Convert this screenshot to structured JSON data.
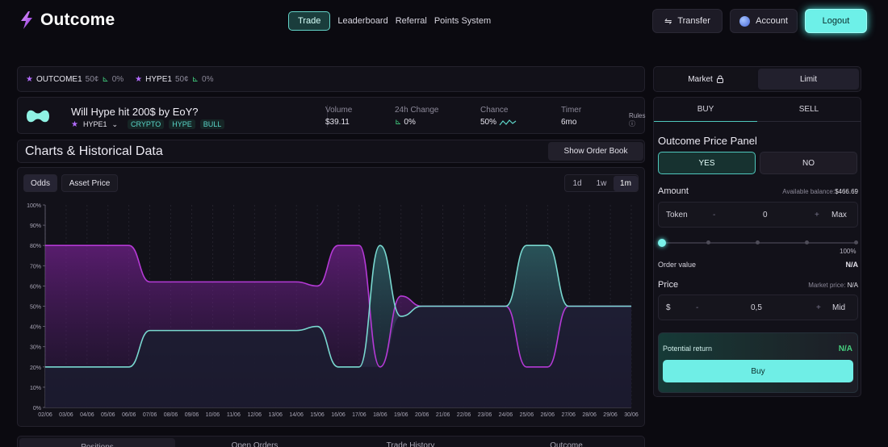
{
  "app": {
    "name": "Outcome",
    "nav": [
      "Trade",
      "Leaderboard",
      "Referral",
      "Points System"
    ],
    "buttons": {
      "transfer": "Transfer",
      "account": "Account",
      "logout": "Logout"
    }
  },
  "ticker": [
    {
      "symbol": "OUTCOME1",
      "price": "50¢",
      "change": "0%"
    },
    {
      "symbol": "HYPE1",
      "price": "50¢",
      "change": "0%"
    }
  ],
  "market": {
    "title": "Will Hype hit 200$ by EoY?",
    "symbol": "HYPE1",
    "tags": [
      "CRYPTO",
      "HYPE",
      "BULL"
    ],
    "volume_label": "Volume",
    "volume": "$39.11",
    "change_label": "24h Change",
    "change": "0%",
    "chance_label": "Chance",
    "chance": "50%",
    "timer_label": "Timer",
    "timer": "6mo",
    "rules": "Rules"
  },
  "charts": {
    "title": "Charts & Historical Data",
    "order_book": "Show Order Book",
    "modes": [
      "Odds",
      "Asset Price"
    ],
    "ranges": [
      "1d",
      "1w",
      "1m"
    ]
  },
  "chart_data": {
    "type": "area",
    "x": [
      "02/06",
      "03/06",
      "04/06",
      "05/06",
      "06/06",
      "07/06",
      "08/06",
      "09/06",
      "10/06",
      "11/06",
      "12/06",
      "13/06",
      "14/06",
      "15/06",
      "16/06",
      "17/06",
      "18/06",
      "19/06",
      "20/06",
      "21/06",
      "22/06",
      "23/06",
      "24/06",
      "25/06",
      "26/06",
      "27/06",
      "28/06",
      "29/06",
      "30/06"
    ],
    "series": [
      {
        "color": "#b53ad6",
        "values": [
          80,
          80,
          80,
          80,
          80,
          62,
          62,
          62,
          62,
          62,
          62,
          62,
          62,
          60,
          80,
          80,
          20,
          55,
          50,
          50,
          50,
          50,
          50,
          20,
          20,
          50,
          50,
          50,
          50
        ]
      },
      {
        "color": "#79d8d0",
        "values": [
          20,
          20,
          20,
          20,
          20,
          38,
          38,
          38,
          38,
          38,
          38,
          38,
          38,
          40,
          20,
          20,
          80,
          45,
          50,
          50,
          50,
          50,
          50,
          80,
          80,
          50,
          50,
          50,
          50
        ]
      }
    ],
    "yticks": [
      "0%",
      "10%",
      "20%",
      "30%",
      "40%",
      "50%",
      "60%",
      "70%",
      "80%",
      "90%",
      "100%"
    ],
    "ylim": [
      0,
      100
    ],
    "grid": true
  },
  "bottom_tabs": [
    "Positions",
    "Open Orders",
    "Trade History",
    "Outcome"
  ],
  "trade": {
    "order_types": [
      "Market",
      "Limit"
    ],
    "sides": [
      "BUY",
      "SELL"
    ],
    "panel_title": "Outcome Price Panel",
    "yes": "YES",
    "no": "NO",
    "amount_label": "Amount",
    "balance_label": "Available balance:",
    "balance": "$466.69",
    "token_label": "Token",
    "minus": "-",
    "plus": "+",
    "amount_value": "0",
    "max": "Max",
    "slider_max": "100%",
    "slider_value": 0,
    "order_value_label": "Order value",
    "order_value": "N/A",
    "price_label": "Price",
    "market_price_label": "Market price:",
    "market_price": "N/A",
    "currency": "$",
    "price_value": "0,5",
    "mid": "Mid",
    "potential_label": "Potential return",
    "potential": "N/A",
    "buy": "Buy"
  }
}
